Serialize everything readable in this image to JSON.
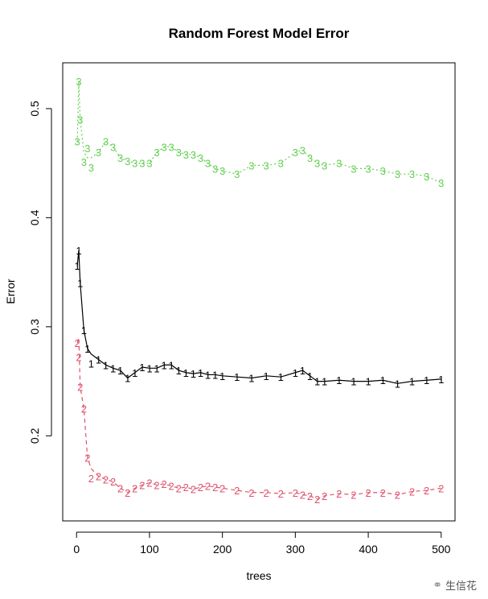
{
  "chart_data": {
    "type": "line",
    "title": "Random Forest Model Error",
    "xlabel": "trees",
    "ylabel": "Error",
    "xlim": [
      -19,
      519
    ],
    "ylim": [
      0.122,
      0.542
    ],
    "xticks": [
      0,
      100,
      200,
      300,
      400,
      500
    ],
    "yticks": [
      0.2,
      0.3,
      0.4,
      0.5
    ],
    "grid": false,
    "x": [
      1,
      3,
      5,
      10,
      15,
      20,
      30,
      40,
      50,
      60,
      70,
      80,
      90,
      100,
      110,
      120,
      130,
      140,
      150,
      160,
      170,
      180,
      190,
      200,
      220,
      240,
      260,
      280,
      300,
      310,
      320,
      330,
      340,
      360,
      380,
      400,
      420,
      440,
      460,
      480,
      500
    ],
    "series": [
      {
        "marker": "1",
        "color": "#000000",
        "line": "solid",
        "values": [
          0.356,
          0.37,
          0.34,
          0.297,
          0.28,
          0.275,
          0.27,
          0.265,
          0.262,
          0.26,
          0.253,
          0.258,
          0.263,
          0.262,
          0.262,
          0.265,
          0.265,
          0.26,
          0.258,
          0.257,
          0.258,
          0.256,
          0.256,
          0.255,
          0.254,
          0.253,
          0.255,
          0.254,
          0.258,
          0.26,
          0.255,
          0.25,
          0.25,
          0.251,
          0.25,
          0.25,
          0.251,
          0.248,
          0.25,
          0.251,
          0.252
        ]
      },
      {
        "marker": "2",
        "color": "#DF536B",
        "line": "dashed",
        "values": [
          0.285,
          0.29,
          0.245,
          0.225,
          0.18,
          0.17,
          0.163,
          0.16,
          0.158,
          0.152,
          0.148,
          0.152,
          0.155,
          0.157,
          0.155,
          0.156,
          0.154,
          0.152,
          0.153,
          0.151,
          0.153,
          0.154,
          0.153,
          0.152,
          0.15,
          0.148,
          0.148,
          0.147,
          0.148,
          0.146,
          0.145,
          0.142,
          0.145,
          0.147,
          0.146,
          0.148,
          0.148,
          0.146,
          0.149,
          0.15,
          0.152
        ]
      },
      {
        "marker": "3",
        "color": "#61D04F",
        "line": "dotted",
        "values": [
          0.47,
          0.525,
          0.49,
          0.46,
          0.455,
          0.455,
          0.46,
          0.47,
          0.465,
          0.455,
          0.452,
          0.45,
          0.45,
          0.45,
          0.46,
          0.465,
          0.465,
          0.46,
          0.458,
          0.458,
          0.455,
          0.45,
          0.445,
          0.443,
          0.44,
          0.448,
          0.448,
          0.45,
          0.46,
          0.462,
          0.455,
          0.45,
          0.448,
          0.45,
          0.445,
          0.445,
          0.443,
          0.44,
          0.44,
          0.438,
          0.432
        ]
      }
    ]
  },
  "watermark": {
    "text": "生信花",
    "icon": "wechat-icon"
  }
}
